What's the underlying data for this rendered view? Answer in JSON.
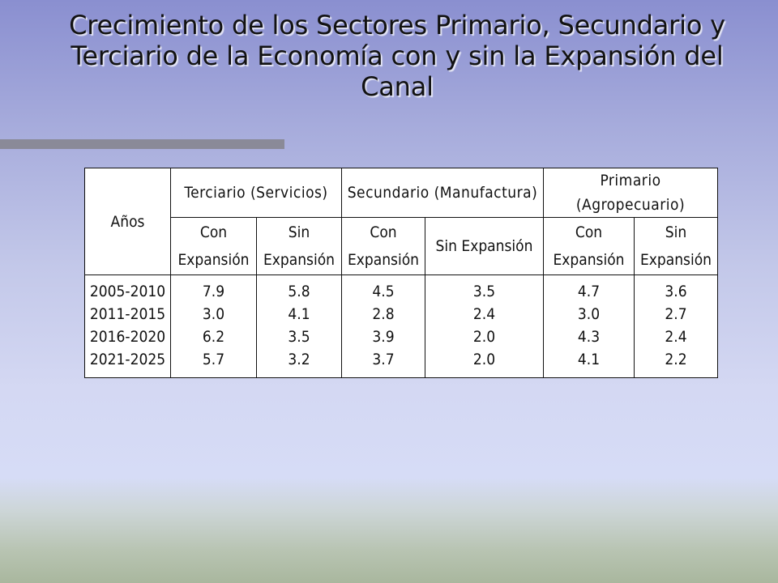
{
  "title": "Crecimiento de los Sectores Primario, Secundario y Terciario de la Economía con y sin la Expansión del Canal",
  "table": {
    "years_header": "Años",
    "sectors": [
      "Terciario (Servicios)",
      "Secundario (Manufactura)",
      "Primario (Agropecuario)"
    ],
    "subheaders": {
      "con_line1": "Con",
      "sin_line1": "Sin",
      "expansion": "Expansión",
      "sin_expansion": "Sin Expansión"
    },
    "rows": [
      {
        "years": "2005-2010",
        "values": [
          "7.9",
          "5.8",
          "4.5",
          "3.5",
          "4.7",
          "3.6"
        ]
      },
      {
        "years": "2011-2015",
        "values": [
          "3.0",
          "4.1",
          "2.8",
          "2.4",
          "3.0",
          "2.7"
        ]
      },
      {
        "years": "2016-2020",
        "values": [
          "6.2",
          "3.5",
          "3.9",
          "2.0",
          "4.3",
          "2.4"
        ]
      },
      {
        "years": "2021-2025",
        "values": [
          "5.7",
          "3.2",
          "3.7",
          "2.0",
          "4.1",
          "2.2"
        ]
      }
    ]
  }
}
